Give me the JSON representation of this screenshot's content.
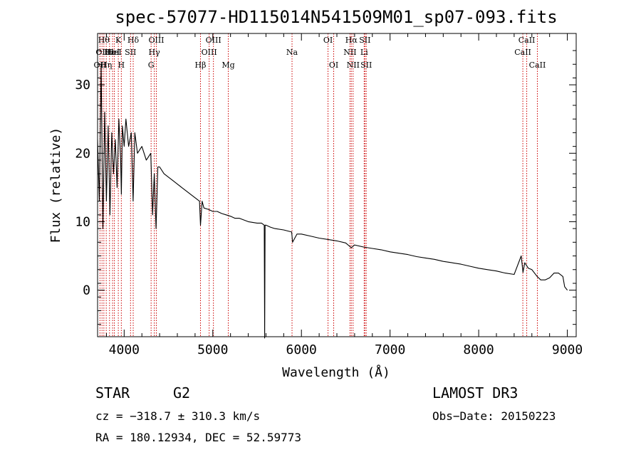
{
  "chart_data": {
    "type": "line",
    "title": "spec-57077-HD115014N541509M01_sp07-093.fits",
    "xlabel": "Wavelength (Å)",
    "ylabel": "Flux (relative)",
    "xlim": [
      3700,
      9100
    ],
    "ylim": [
      -6.8,
      37.5
    ],
    "xticks": [
      4000,
      5000,
      6000,
      7000,
      8000,
      9000
    ],
    "yticks": [
      0,
      10,
      20,
      30
    ],
    "grid": false,
    "series": [
      {
        "name": "flux",
        "color": "#000000",
        "x": [
          3700,
          3720,
          3740,
          3760,
          3780,
          3800,
          3820,
          3840,
          3860,
          3880,
          3900,
          3920,
          3940,
          3960,
          3968,
          3980,
          4000,
          4020,
          4050,
          4080,
          4101,
          4120,
          4150,
          4200,
          4250,
          4300,
          4320,
          4340,
          4360,
          4380,
          4400,
          4450,
          4500,
          4550,
          4600,
          4650,
          4700,
          4750,
          4800,
          4850,
          4861,
          4880,
          4900,
          4950,
          5000,
          5050,
          5100,
          5150,
          5200,
          5250,
          5300,
          5400,
          5500,
          5550,
          5580,
          5585,
          5590,
          5600,
          5650,
          5700,
          5800,
          5890,
          5900,
          5950,
          6000,
          6100,
          6200,
          6300,
          6400,
          6500,
          6563,
          6600,
          6700,
          6800,
          6900,
          7000,
          7100,
          7200,
          7300,
          7400,
          7500,
          7600,
          7700,
          7800,
          7900,
          8000,
          8100,
          8200,
          8300,
          8400,
          8480,
          8500,
          8520,
          8560,
          8600,
          8660,
          8700,
          8750,
          8800,
          8850,
          8900,
          8950,
          8970,
          9000
        ],
        "values": [
          22,
          13,
          33,
          9,
          26,
          13,
          24,
          11,
          23,
          17,
          22,
          15,
          25,
          19,
          14,
          24,
          21,
          25,
          21,
          23,
          13,
          23,
          20,
          21,
          19,
          20,
          11,
          17,
          9,
          18,
          18,
          17,
          16.5,
          16,
          15.5,
          15,
          14.5,
          14,
          13.5,
          13,
          9.5,
          13,
          12,
          11.8,
          11.5,
          11.5,
          11.2,
          11,
          10.8,
          10.5,
          10.5,
          10,
          9.8,
          9.8,
          9.5,
          -7,
          9.5,
          9.5,
          9.2,
          9,
          8.8,
          8.5,
          7,
          8.2,
          8.2,
          7.9,
          7.6,
          7.4,
          7.2,
          6.9,
          6.2,
          6.6,
          6.3,
          6.1,
          5.9,
          5.6,
          5.4,
          5.2,
          4.9,
          4.7,
          4.5,
          4.2,
          4,
          3.8,
          3.5,
          3.2,
          3,
          2.8,
          2.5,
          2.3,
          5,
          2.6,
          4,
          3.2,
          3,
          2,
          1.5,
          1.5,
          1.8,
          2.5,
          2.5,
          2,
          0.5,
          0
        ]
      }
    ],
    "lines": [
      {
        "wl": 3727,
        "label": "OII",
        "row": 3
      },
      {
        "wl": 3750,
        "label": "OII",
        "row": 2
      },
      {
        "wl": 3771,
        "label": "Hθ",
        "row": 1
      },
      {
        "wl": 3798,
        "label": "Hη",
        "row": 3
      },
      {
        "wl": 3835,
        "label": "Hε",
        "row": 2
      },
      {
        "wl": 3869,
        "label": "HeI",
        "row": 2
      },
      {
        "wl": 3889,
        "label": "HeI",
        "row": 2
      },
      {
        "wl": 3934,
        "label": "K",
        "row": 1
      },
      {
        "wl": 3968,
        "label": "H",
        "row": 3
      },
      {
        "wl": 4072,
        "label": "SII",
        "row": 2
      },
      {
        "wl": 4102,
        "label": "Hδ",
        "row": 1
      },
      {
        "wl": 4304,
        "label": "G",
        "row": 3
      },
      {
        "wl": 4340,
        "label": "Hγ",
        "row": 2
      },
      {
        "wl": 4363,
        "label": "OIII",
        "row": 1
      },
      {
        "wl": 4861,
        "label": "Hβ",
        "row": 3
      },
      {
        "wl": 4959,
        "label": "OIII",
        "row": 2
      },
      {
        "wl": 5007,
        "label": "OIII",
        "row": 1
      },
      {
        "wl": 5175,
        "label": "Mg",
        "row": 3
      },
      {
        "wl": 5894,
        "label": "Na",
        "row": 2
      },
      {
        "wl": 6300,
        "label": "OI",
        "row": 1
      },
      {
        "wl": 6364,
        "label": "OI",
        "row": 3
      },
      {
        "wl": 6548,
        "label": "NII",
        "row": 2
      },
      {
        "wl": 6563,
        "label": "Hα",
        "row": 1
      },
      {
        "wl": 6583,
        "label": "NII",
        "row": 3
      },
      {
        "wl": 6708,
        "label": "Li",
        "row": 2
      },
      {
        "wl": 6716,
        "label": "SII",
        "row": 1
      },
      {
        "wl": 6731,
        "label": "SII",
        "row": 3
      },
      {
        "wl": 8498,
        "label": "CaII",
        "row": 2
      },
      {
        "wl": 8542,
        "label": "CaII",
        "row": 1
      },
      {
        "wl": 8662,
        "label": "CaII",
        "row": 3
      }
    ]
  },
  "info": {
    "object_type": "STAR",
    "subclass": "G2",
    "survey": "LAMOST DR3",
    "cz": "cz = −318.7 ± 310.3 km/s",
    "obs_date": "Obs−Date: 20150223",
    "coords": "RA = 180.12934, DEC =  52.59773"
  }
}
